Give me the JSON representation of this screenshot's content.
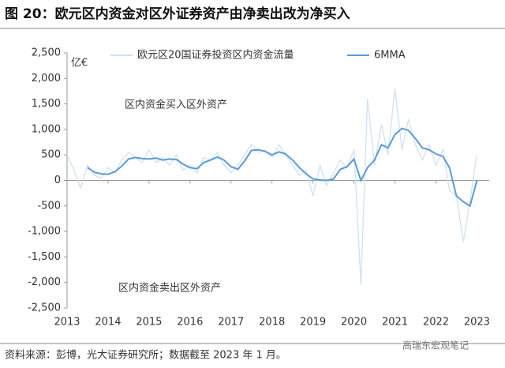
{
  "chart_data": {
    "type": "line",
    "title": "图 20：欧元区内资金对区外证券资产由净卖出改为净买入",
    "y_label": "亿€",
    "annotations": [
      "区内资金买入区外资产",
      "区内资金卖出区外资产"
    ],
    "source": "资料来源：彭博，光大证券研究所；数据截至 2023 年 1 月。",
    "watermark": "高瑞东宏观笔记",
    "x": [
      2013.0,
      2013.17,
      2013.33,
      2013.5,
      2013.67,
      2013.83,
      2014.0,
      2014.17,
      2014.33,
      2014.5,
      2014.67,
      2014.83,
      2015.0,
      2015.17,
      2015.33,
      2015.5,
      2015.67,
      2015.83,
      2016.0,
      2016.17,
      2016.33,
      2016.5,
      2016.67,
      2016.83,
      2017.0,
      2017.17,
      2017.33,
      2017.5,
      2017.67,
      2017.83,
      2018.0,
      2018.17,
      2018.33,
      2018.5,
      2018.67,
      2018.83,
      2019.0,
      2019.17,
      2019.33,
      2019.5,
      2019.67,
      2019.83,
      2020.0,
      2020.17,
      2020.33,
      2020.5,
      2020.67,
      2020.83,
      2021.0,
      2021.17,
      2021.33,
      2021.5,
      2021.67,
      2021.83,
      2022.0,
      2022.17,
      2022.33,
      2022.5,
      2022.67,
      2022.83,
      2023.0
    ],
    "series": [
      {
        "name": "欧元区20国证券投资区内资金流量",
        "color": "#cfe2f3",
        "values": [
          500,
          200,
          -150,
          300,
          100,
          50,
          250,
          150,
          400,
          550,
          450,
          350,
          600,
          350,
          450,
          300,
          500,
          200,
          300,
          150,
          450,
          400,
          550,
          300,
          150,
          300,
          500,
          700,
          550,
          600,
          450,
          700,
          500,
          300,
          100,
          200,
          -300,
          300,
          -100,
          150,
          400,
          250,
          600,
          -2050,
          1600,
          300,
          1100,
          500,
          1800,
          600,
          1200,
          700,
          400,
          700,
          300,
          600,
          -200,
          -300,
          -1200,
          -400,
          500
        ]
      },
      {
        "name": "6MMA",
        "color": "#5b9bd5",
        "values": [
          null,
          null,
          null,
          250,
          160,
          130,
          120,
          170,
          280,
          420,
          450,
          430,
          420,
          440,
          400,
          420,
          410,
          320,
          250,
          230,
          350,
          400,
          460,
          400,
          270,
          220,
          380,
          590,
          600,
          570,
          500,
          560,
          520,
          400,
          250,
          130,
          30,
          10,
          0,
          30,
          220,
          270,
          420,
          0,
          250,
          400,
          700,
          640,
          900,
          1020,
          980,
          820,
          640,
          600,
          520,
          470,
          250,
          -300,
          -420,
          -500,
          0
        ]
      }
    ],
    "xlim": [
      2013,
      2023.3
    ],
    "xticks": [
      2013,
      2014,
      2015,
      2016,
      2017,
      2018,
      2019,
      2020,
      2021,
      2022,
      2023
    ],
    "ylim": [
      -2500,
      2500
    ],
    "yticks": [
      {
        "value": -2500,
        "label": "-2,500"
      },
      {
        "value": -2000,
        "label": "-2,000"
      },
      {
        "value": -1500,
        "label": "-1,500"
      },
      {
        "value": -1000,
        "label": "-1,000"
      },
      -500,
      0,
      500,
      {
        "value": 1000,
        "label": "1,000"
      },
      {
        "value": 1500,
        "label": "1,500"
      },
      {
        "value": 2000,
        "label": "2,000"
      },
      {
        "value": 2500,
        "label": "2,500"
      }
    ]
  }
}
